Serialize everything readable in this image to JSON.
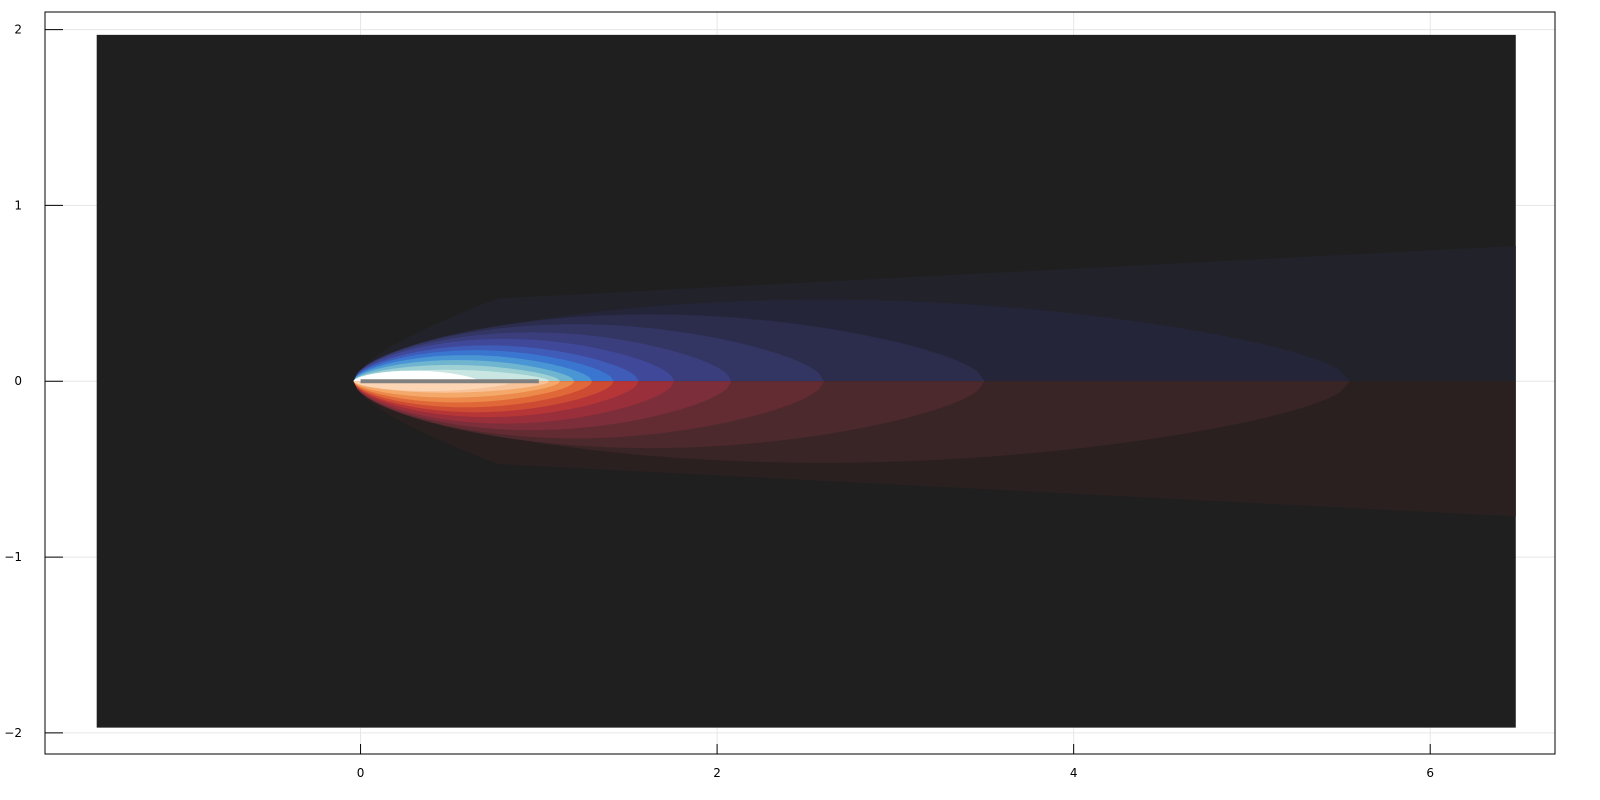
{
  "chart_data": {
    "type": "heatmap",
    "subtype": "filled contour plot",
    "title": "",
    "xlabel": "",
    "ylabel": "",
    "xlim": [
      -1.77,
      6.7
    ],
    "ylim": [
      -2.12,
      2.1
    ],
    "field_extent": {
      "x": [
        -1.48,
        6.48
      ],
      "y": [
        -1.97,
        1.97
      ]
    },
    "x_ticks": [
      0,
      2,
      4,
      6
    ],
    "y_ticks": [
      -2,
      -1,
      0,
      1,
      2
    ],
    "x_tick_labels": [
      "0",
      "2",
      "4",
      "6"
    ],
    "y_tick_labels": [
      "−2",
      "−1",
      "0",
      "1",
      "2"
    ],
    "grid": true,
    "legend": "none",
    "colorbar": "none",
    "background_color": "#1f1f1f",
    "body": {
      "shape": "flat plate",
      "x": [
        0,
        1
      ],
      "y": 0,
      "color": "#808080"
    },
    "field": {
      "description": "signed field, positive above the plate (blue-cyan-white), negative below (red-orange-peach), zero in the dark background",
      "contours_upper": [
        {
          "level": 1,
          "x_end": 6.48,
          "half_height": 0.78,
          "color": "#22222a"
        },
        {
          "level": 2,
          "x_end": 5.55,
          "half_height": 0.5,
          "color": "#25253a"
        },
        {
          "level": 3,
          "x_end": 3.5,
          "half_height": 0.41,
          "color": "#2c2c4c"
        },
        {
          "level": 4,
          "x_end": 2.6,
          "half_height": 0.35,
          "color": "#333563"
        },
        {
          "level": 5,
          "x_end": 2.08,
          "half_height": 0.3,
          "color": "#3a3e7c"
        },
        {
          "level": 6,
          "x_end": 1.76,
          "half_height": 0.26,
          "color": "#40489a"
        },
        {
          "level": 7,
          "x_end": 1.56,
          "half_height": 0.22,
          "color": "#3f5cb8"
        },
        {
          "level": 8,
          "x_end": 1.42,
          "half_height": 0.19,
          "color": "#3a76cf"
        },
        {
          "level": 9,
          "x_end": 1.3,
          "half_height": 0.16,
          "color": "#4a95d4"
        },
        {
          "level": 10,
          "x_end": 1.2,
          "half_height": 0.13,
          "color": "#6fb5cf"
        },
        {
          "level": 11,
          "x_end": 1.12,
          "half_height": 0.1,
          "color": "#9ed0d4"
        },
        {
          "level": 12,
          "x_end": 1.06,
          "half_height": 0.07,
          "color": "#c9e6e2"
        },
        {
          "level": 13,
          "x_end": 0.66,
          "half_height": 0.065,
          "color": "#ffffff"
        }
      ],
      "contours_lower": [
        {
          "level": -1,
          "x_end": 6.48,
          "half_height": 0.78,
          "color": "#2a2020"
        },
        {
          "level": -2,
          "x_end": 5.55,
          "half_height": 0.5,
          "color": "#3a2526"
        },
        {
          "level": -3,
          "x_end": 3.5,
          "half_height": 0.41,
          "color": "#4c292c"
        },
        {
          "level": -4,
          "x_end": 2.6,
          "half_height": 0.35,
          "color": "#632c33"
        },
        {
          "level": -5,
          "x_end": 2.08,
          "half_height": 0.3,
          "color": "#7c2e3a"
        },
        {
          "level": -6,
          "x_end": 1.76,
          "half_height": 0.26,
          "color": "#982f3a"
        },
        {
          "level": -7,
          "x_end": 1.56,
          "half_height": 0.22,
          "color": "#b63638"
        },
        {
          "level": -8,
          "x_end": 1.42,
          "half_height": 0.19,
          "color": "#cd4a33"
        },
        {
          "level": -9,
          "x_end": 1.3,
          "half_height": 0.16,
          "color": "#e06838"
        },
        {
          "level": -10,
          "x_end": 1.2,
          "half_height": 0.13,
          "color": "#ec8a4c"
        },
        {
          "level": -11,
          "x_end": 1.12,
          "half_height": 0.1,
          "color": "#f4a96a"
        },
        {
          "level": -12,
          "x_end": 1.06,
          "half_height": 0.07,
          "color": "#f9c39a"
        },
        {
          "level": -13,
          "x_end": 0.86,
          "half_height": 0.06,
          "color": "#fcd5b5"
        }
      ]
    }
  }
}
